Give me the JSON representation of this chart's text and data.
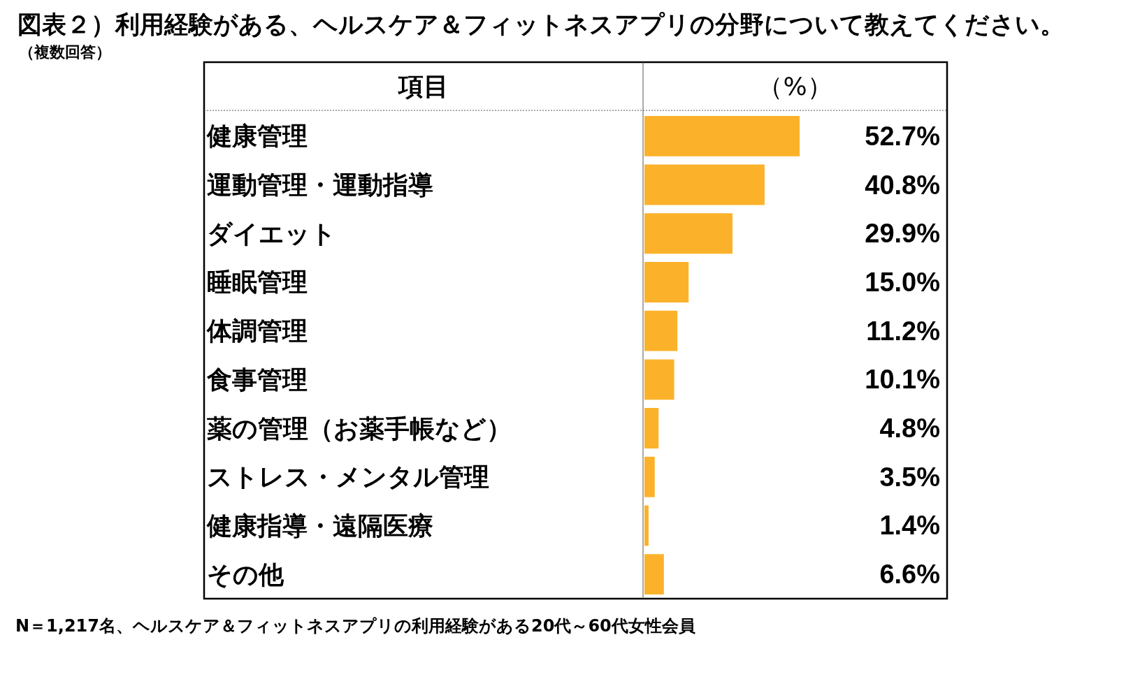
{
  "chart_data": {
    "type": "bar",
    "orientation": "horizontal",
    "title": "図表２）利用経験がある、ヘルスケア＆フィットネスアプリの分野について教えてください。",
    "subtitle": "（複数回答）",
    "ylabel": "項目",
    "xlabel": "（%）",
    "categories": [
      "健康管理",
      "運動管理・運動指導",
      "ダイエット",
      "睡眠管理",
      "体調管理",
      "食事管理",
      "薬の管理（お薬手帳など）",
      "ストレス・メンタル管理",
      "健康指導・遠隔医療",
      "その他"
    ],
    "values": [
      52.7,
      40.8,
      29.9,
      15.0,
      11.2,
      10.1,
      4.8,
      3.5,
      1.4,
      6.6
    ],
    "color": "#fbb22a",
    "value_labels": [
      "52.7%",
      "40.8%",
      "29.9%",
      "15.0%",
      "11.2%",
      "10.1%",
      "4.8%",
      "3.5%",
      "1.4%",
      "6.6%"
    ],
    "annotations": [
      "N＝1,217名、ヘルスケア＆フィットネスアプリの利用経験がある20代～60代女性会員"
    ]
  }
}
